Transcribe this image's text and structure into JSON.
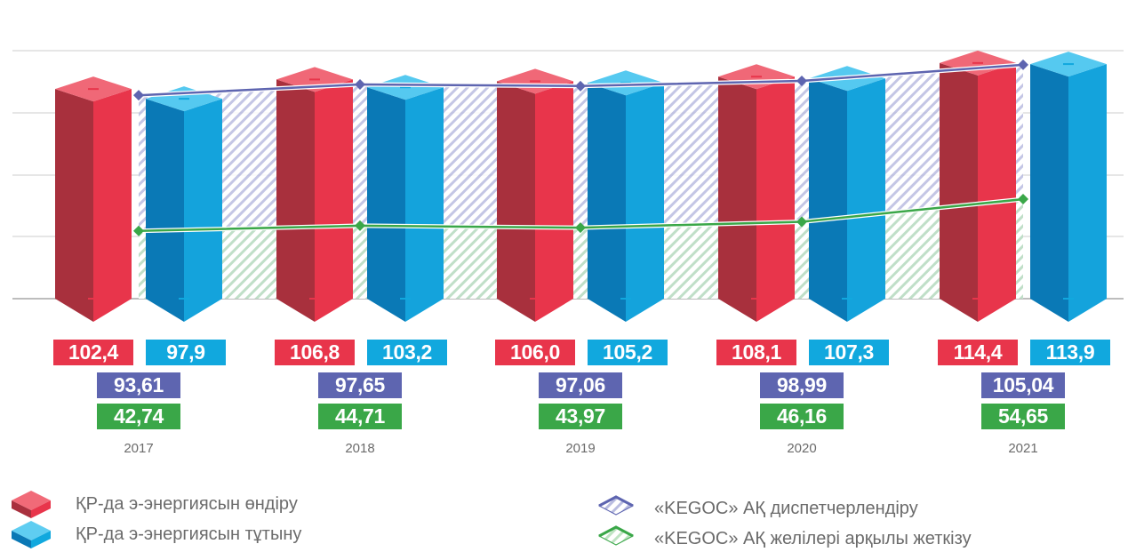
{
  "colors": {
    "production": "#e8354b",
    "consumption": "#11a8de",
    "dispatch": "#5e65b0",
    "transmission": "#3aa748",
    "grid": "#e6e6e6",
    "axis": "#bdbdbd",
    "year_text": "#6b6b6b"
  },
  "chart_data": {
    "type": "bar",
    "categories": [
      "2017",
      "2018",
      "2019",
      "2020",
      "2021"
    ],
    "series": [
      {
        "name": "ҚР-да э-энергиясын өндіру",
        "kind": "bar",
        "values": [
          102.4,
          106.8,
          106.0,
          108.1,
          114.4
        ],
        "labels": [
          "102,4",
          "106,8",
          "106,0",
          "108,1",
          "114,4"
        ]
      },
      {
        "name": "ҚР-да э-энергиясын тұтыну",
        "kind": "bar",
        "values": [
          97.9,
          103.2,
          105.2,
          107.3,
          113.9
        ],
        "labels": [
          "97,9",
          "103,2",
          "105,2",
          "107,3",
          "113,9"
        ]
      },
      {
        "name": "«KEGOC» АҚ диспетчерлендіру",
        "kind": "line-area",
        "values": [
          93.61,
          97.65,
          97.06,
          98.99,
          105.04
        ],
        "labels": [
          "93,61",
          "97,65",
          "97,06",
          "98,99",
          "105,04"
        ]
      },
      {
        "name": "«KEGOC» АҚ желілері арқылы жеткізу",
        "kind": "line-area",
        "values": [
          42.74,
          44.71,
          43.97,
          46.16,
          54.65
        ],
        "labels": [
          "42,74",
          "44,71",
          "43,97",
          "46,16",
          "54,65"
        ]
      }
    ],
    "gridlines": true,
    "legend_position": "bottom"
  }
}
